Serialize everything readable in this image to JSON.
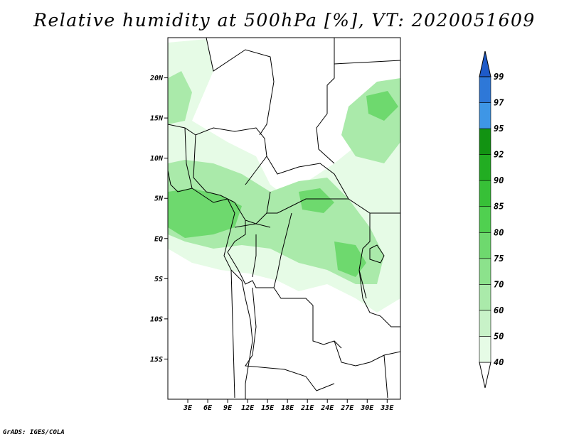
{
  "title": "Relative humidity at 500hPa [%], VT: 2020051609",
  "credit": "GrADS: IGES/COLA",
  "map": {
    "lon_range": [
      0,
      35
    ],
    "lat_range": [
      -20,
      25
    ],
    "lat_ticks": [
      {
        "value": 20,
        "label": "20N"
      },
      {
        "value": 15,
        "label": "15N"
      },
      {
        "value": 10,
        "label": "10N"
      },
      {
        "value": 5,
        "label": "5N"
      },
      {
        "value": 0,
        "label": "EQ"
      },
      {
        "value": -5,
        "label": "5S"
      },
      {
        "value": -10,
        "label": "10S"
      },
      {
        "value": -15,
        "label": "15S"
      }
    ],
    "lon_ticks": [
      {
        "value": 3,
        "label": "3E"
      },
      {
        "value": 6,
        "label": "6E"
      },
      {
        "value": 9,
        "label": "9E"
      },
      {
        "value": 12,
        "label": "12E"
      },
      {
        "value": 15,
        "label": "15E"
      },
      {
        "value": 18,
        "label": "18E"
      },
      {
        "value": 21,
        "label": "21E"
      },
      {
        "value": 24,
        "label": "24E"
      },
      {
        "value": 27,
        "label": "27E"
      },
      {
        "value": 30,
        "label": "30E"
      },
      {
        "value": 33,
        "label": "33E"
      }
    ]
  },
  "colorbar": {
    "levels": [
      {
        "label": "40",
        "color": "#e6fbe6"
      },
      {
        "label": "50",
        "color": "#c8f2c8"
      },
      {
        "label": "60",
        "color": "#aaeaaa"
      },
      {
        "label": "70",
        "color": "#8ce28c"
      },
      {
        "label": "75",
        "color": "#6ed96e"
      },
      {
        "label": "80",
        "color": "#50d050"
      },
      {
        "label": "85",
        "color": "#37c037"
      },
      {
        "label": "90",
        "color": "#22ad22"
      },
      {
        "label": "92",
        "color": "#129312"
      },
      {
        "label": "95",
        "color": "#3e96e6"
      },
      {
        "label": "97",
        "color": "#2e78d8"
      },
      {
        "label": "99",
        "color": "#1e5ac8"
      }
    ]
  }
}
